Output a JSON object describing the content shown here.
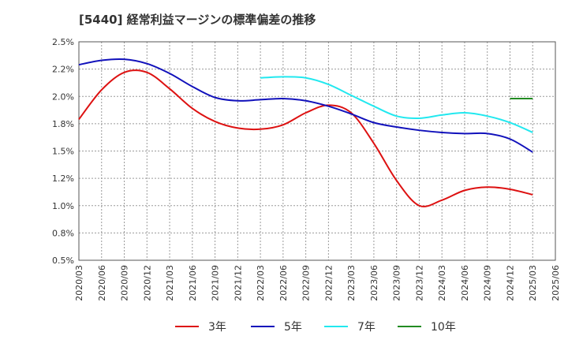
{
  "title": "[5440]  経常利益マージンの標準偏差の推移",
  "chart_data": {
    "type": "line",
    "title": "[5440]  経常利益マージンの標準偏差の推移",
    "xlabel": "",
    "ylabel": "",
    "x": [
      "2020/03",
      "2020/06",
      "2020/09",
      "2020/12",
      "2021/03",
      "2021/06",
      "2021/09",
      "2021/12",
      "2022/03",
      "2022/06",
      "2022/09",
      "2022/12",
      "2023/03",
      "2023/06",
      "2023/09",
      "2023/12",
      "2024/03",
      "2024/06",
      "2024/09",
      "2024/12",
      "2025/03",
      "2025/06"
    ],
    "ylim": [
      0.5,
      2.5
    ],
    "yticks": [
      "0.5%",
      "0.8%",
      "1.0%",
      "1.2%",
      "1.5%",
      "1.8%",
      "2.0%",
      "2.2%",
      "2.5%"
    ],
    "grid": true,
    "legend_position": "bottom",
    "series": [
      {
        "name": "3年",
        "color": "#dd1111",
        "values": [
          1.79,
          2.06,
          2.22,
          2.22,
          2.07,
          1.89,
          1.77,
          1.71,
          1.7,
          1.74,
          1.85,
          1.92,
          1.85,
          1.57,
          1.23,
          1.0,
          1.05,
          1.14,
          1.17,
          1.15,
          1.1,
          null
        ]
      },
      {
        "name": "5年",
        "color": "#1111bb",
        "values": [
          2.29,
          2.33,
          2.34,
          2.3,
          2.21,
          2.09,
          1.99,
          1.96,
          1.97,
          1.98,
          1.96,
          1.91,
          1.84,
          1.76,
          1.72,
          1.69,
          1.67,
          1.66,
          1.66,
          1.61,
          1.49,
          null
        ]
      },
      {
        "name": "7年",
        "color": "#22e8ef",
        "values": [
          null,
          null,
          null,
          null,
          null,
          null,
          null,
          null,
          2.17,
          2.18,
          2.17,
          2.11,
          2.01,
          1.91,
          1.82,
          1.8,
          1.83,
          1.85,
          1.82,
          1.76,
          1.67,
          null
        ]
      },
      {
        "name": "10年",
        "color": "#228b22",
        "values": [
          null,
          null,
          null,
          null,
          null,
          null,
          null,
          null,
          null,
          null,
          null,
          null,
          null,
          null,
          null,
          null,
          null,
          null,
          null,
          1.98,
          1.98,
          null
        ]
      }
    ]
  }
}
